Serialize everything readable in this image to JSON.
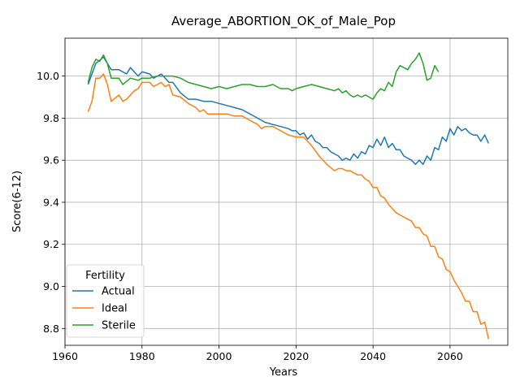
{
  "chart_data": {
    "type": "line",
    "title": "Average_ABORTION_OK_of_Male_Pop",
    "xlabel": "Years",
    "ylabel": "Score(6-12)",
    "xlim": [
      1960,
      2075
    ],
    "ylim": [
      8.72,
      10.18
    ],
    "xticks": [
      1960,
      1980,
      2000,
      2020,
      2040,
      2060
    ],
    "yticks": [
      8.8,
      9.0,
      9.2,
      9.4,
      9.6,
      9.8,
      10.0
    ],
    "xtick_labels": [
      "1960",
      "1980",
      "2000",
      "2020",
      "2040",
      "2060"
    ],
    "ytick_labels": [
      "8.8",
      "9.0",
      "9.2",
      "9.4",
      "9.6",
      "9.8",
      "10.0"
    ],
    "grid": true,
    "legend": {
      "title": "Fertility",
      "placement": "lower-left"
    },
    "series": [
      {
        "name": "Actual",
        "color": "#1f77b4",
        "x": [
          1966,
          1968,
          1970,
          1972,
          1974,
          1976,
          1977,
          1979,
          1980,
          1982,
          1983,
          1985,
          1987,
          1988,
          1990,
          1992,
          1994,
          1996,
          1998,
          2000,
          2002,
          2004,
          2006,
          2008,
          2010,
          2012,
          2014,
          2016,
          2018,
          2019,
          2020,
          2021,
          2022,
          2023,
          2024,
          2025,
          2026,
          2027,
          2028,
          2029,
          2030,
          2031,
          2032,
          2033,
          2034,
          2035,
          2036,
          2037,
          2038,
          2039,
          2040,
          2041,
          2042,
          2043,
          2044,
          2045,
          2046,
          2047,
          2048,
          2049,
          2050,
          2051,
          2052,
          2053,
          2054,
          2055,
          2056,
          2057,
          2058,
          2059,
          2060,
          2061,
          2062,
          2063,
          2064,
          2065,
          2066,
          2067,
          2068,
          2069,
          2070
        ],
        "values": [
          9.96,
          10.06,
          10.09,
          10.03,
          10.03,
          10.01,
          10.04,
          10.0,
          10.02,
          10.01,
          9.99,
          10.01,
          9.97,
          9.97,
          9.92,
          9.89,
          9.89,
          9.88,
          9.88,
          9.87,
          9.86,
          9.85,
          9.84,
          9.82,
          9.8,
          9.78,
          9.77,
          9.76,
          9.75,
          9.74,
          9.74,
          9.72,
          9.73,
          9.7,
          9.72,
          9.69,
          9.68,
          9.66,
          9.66,
          9.64,
          9.63,
          9.62,
          9.6,
          9.61,
          9.6,
          9.63,
          9.61,
          9.64,
          9.63,
          9.67,
          9.66,
          9.7,
          9.67,
          9.71,
          9.66,
          9.68,
          9.65,
          9.65,
          9.62,
          9.61,
          9.6,
          9.58,
          9.6,
          9.58,
          9.62,
          9.6,
          9.66,
          9.65,
          9.71,
          9.69,
          9.75,
          9.72,
          9.76,
          9.74,
          9.75,
          9.73,
          9.72,
          9.72,
          9.69,
          9.72,
          9.68
        ]
      },
      {
        "name": "Ideal",
        "color": "#ff7f0e",
        "x": [
          1966,
          1967,
          1968,
          1969,
          1970,
          1971,
          1972,
          1974,
          1975,
          1976,
          1978,
          1979,
          1980,
          1982,
          1983,
          1985,
          1986,
          1987,
          1988,
          1990,
          1992,
          1994,
          1995,
          1996,
          1997,
          1999,
          2000,
          2002,
          2004,
          2006,
          2008,
          2010,
          2011,
          2012,
          2014,
          2016,
          2018,
          2020,
          2022,
          2024,
          2026,
          2028,
          2030,
          2031,
          2032,
          2033,
          2034,
          2035,
          2036,
          2037,
          2038,
          2039,
          2040,
          2041,
          2042,
          2043,
          2044,
          2045,
          2046,
          2047,
          2048,
          2049,
          2050,
          2051,
          2052,
          2053,
          2054,
          2055,
          2056,
          2057,
          2058,
          2059,
          2060,
          2061,
          2062,
          2063,
          2064,
          2065,
          2066,
          2067,
          2068,
          2069,
          2070
        ],
        "values": [
          9.83,
          9.88,
          9.99,
          9.99,
          10.01,
          9.96,
          9.88,
          9.91,
          9.88,
          9.89,
          9.93,
          9.94,
          9.97,
          9.97,
          9.95,
          9.97,
          9.95,
          9.96,
          9.91,
          9.9,
          9.87,
          9.85,
          9.83,
          9.84,
          9.82,
          9.82,
          9.82,
          9.82,
          9.81,
          9.81,
          9.79,
          9.77,
          9.75,
          9.76,
          9.76,
          9.74,
          9.72,
          9.71,
          9.71,
          9.67,
          9.62,
          9.58,
          9.55,
          9.56,
          9.56,
          9.55,
          9.55,
          9.54,
          9.53,
          9.53,
          9.51,
          9.5,
          9.47,
          9.47,
          9.43,
          9.42,
          9.39,
          9.37,
          9.35,
          9.34,
          9.33,
          9.32,
          9.31,
          9.28,
          9.28,
          9.25,
          9.24,
          9.19,
          9.19,
          9.14,
          9.13,
          9.08,
          9.07,
          9.03,
          9.0,
          8.97,
          8.93,
          8.93,
          8.88,
          8.88,
          8.82,
          8.83,
          8.75
        ]
      },
      {
        "name": "Sterile",
        "color": "#2ca02c",
        "x": [
          1966,
          1967,
          1968,
          1969,
          1970,
          1971,
          1972,
          1974,
          1975,
          1977,
          1979,
          1980,
          1982,
          1984,
          1986,
          1988,
          1990,
          1992,
          1994,
          1996,
          1998,
          2000,
          2002,
          2004,
          2006,
          2008,
          2010,
          2012,
          2014,
          2016,
          2018,
          2019,
          2020,
          2022,
          2024,
          2026,
          2028,
          2030,
          2031,
          2032,
          2033,
          2034,
          2035,
          2036,
          2037,
          2038,
          2039,
          2040,
          2041,
          2042,
          2043,
          2044,
          2045,
          2046,
          2047,
          2048,
          2049,
          2050,
          2051,
          2052,
          2053,
          2054,
          2055,
          2056,
          2057
        ],
        "values": [
          9.97,
          10.04,
          10.08,
          10.07,
          10.1,
          10.06,
          9.99,
          9.99,
          9.96,
          9.99,
          9.98,
          9.99,
          9.99,
          10.0,
          10.0,
          10.0,
          9.99,
          9.97,
          9.96,
          9.95,
          9.94,
          9.95,
          9.94,
          9.95,
          9.96,
          9.96,
          9.95,
          9.95,
          9.96,
          9.94,
          9.94,
          9.93,
          9.94,
          9.95,
          9.96,
          9.95,
          9.94,
          9.93,
          9.94,
          9.92,
          9.93,
          9.91,
          9.9,
          9.91,
          9.9,
          9.91,
          9.9,
          9.89,
          9.92,
          9.94,
          9.93,
          9.97,
          9.95,
          10.02,
          10.05,
          10.04,
          10.03,
          10.06,
          10.08,
          10.11,
          10.06,
          9.98,
          9.99,
          10.05,
          10.02
        ]
      }
    ]
  }
}
